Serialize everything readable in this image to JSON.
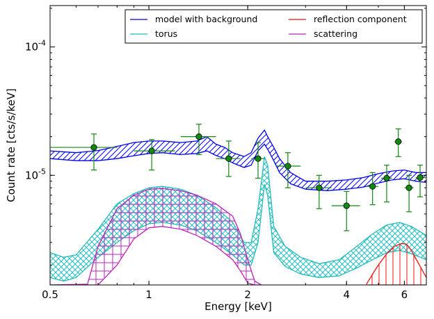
{
  "chart_data": {
    "type": "line",
    "title": "",
    "xlabel": "Energy [keV]",
    "ylabel": "Count rate [cts/s/keV]",
    "x_scale": "log",
    "y_scale": "log",
    "xlim": [
      0.5,
      7.0
    ],
    "ylim": [
      1.4e-06,
      0.00021
    ],
    "grid": false,
    "legend_position": "top-right",
    "legend_columns": 2,
    "x_ticks": [
      {
        "value": 0.5,
        "label": "0.5"
      },
      {
        "value": 1,
        "label": "1"
      },
      {
        "value": 2,
        "label": "2"
      },
      {
        "value": 4,
        "label": "4"
      },
      {
        "value": 6,
        "label": "6"
      }
    ],
    "y_ticks": [
      {
        "value": 1e-05,
        "base": "10",
        "exp": "-5"
      },
      {
        "value": 0.0001,
        "base": "10",
        "exp": "-4"
      }
    ],
    "series": [
      {
        "name": "model with background",
        "color": "#0000ee",
        "hatch": "diagonal",
        "x": [
          0.5,
          0.6,
          0.7,
          0.8,
          0.9,
          1.0,
          1.1,
          1.25,
          1.4,
          1.5,
          1.6,
          1.7,
          1.8,
          1.95,
          2.05,
          2.15,
          2.25,
          2.3,
          2.4,
          2.5,
          2.7,
          3.0,
          3.5,
          4.0,
          4.5,
          5.0,
          5.5,
          6.0,
          6.5,
          7.0
        ],
        "upper": [
          1.55e-05,
          1.5e-05,
          1.56e-05,
          1.68e-05,
          1.8e-05,
          1.85e-05,
          1.85e-05,
          1.8e-05,
          1.85e-05,
          2e-05,
          1.75e-05,
          1.65e-05,
          1.5e-05,
          1.4e-05,
          1.5e-05,
          1.95e-05,
          2.25e-05,
          2e-05,
          1.65e-05,
          1.35e-05,
          1.05e-05,
          9e-06,
          9e-06,
          9.2e-06,
          9.6e-06,
          1.03e-05,
          1.08e-05,
          1.1e-05,
          1.05e-05,
          1.05e-05
        ],
        "lower": [
          1.35e-05,
          1.3e-05,
          1.3e-05,
          1.35e-05,
          1.42e-05,
          1.48e-05,
          1.5e-05,
          1.45e-05,
          1.48e-05,
          1.55e-05,
          1.43e-05,
          1.35e-05,
          1.25e-05,
          1.15e-05,
          1.2e-05,
          1.55e-05,
          1.75e-05,
          1.6e-05,
          1.3e-05,
          1.05e-05,
          8.6e-06,
          7.8e-06,
          7.6e-06,
          7.8e-06,
          8.1e-06,
          8.7e-06,
          9.2e-06,
          9.4e-06,
          9e-06,
          8.8e-06
        ]
      },
      {
        "name": "torus",
        "color": "#22bbbb",
        "hatch": "cross-diagonal",
        "x": [
          0.5,
          0.55,
          0.6,
          0.7,
          0.8,
          0.9,
          1.0,
          1.1,
          1.25,
          1.4,
          1.6,
          1.8,
          1.95,
          2.05,
          2.15,
          2.25,
          2.3,
          2.4,
          2.6,
          2.9,
          3.3,
          3.8,
          4.3,
          4.8,
          5.3,
          5.8,
          6.3,
          7.0
        ],
        "upper": [
          2.5e-06,
          2.3e-06,
          2.4e-06,
          3.8e-06,
          6e-06,
          7.2e-06,
          8e-06,
          8.2e-06,
          7.8e-06,
          7e-06,
          5.6e-06,
          4.3e-06,
          3e-06,
          3e-06,
          5.5e-06,
          1.4e-05,
          1.2e-05,
          4e-06,
          2.8e-06,
          2.3e-06,
          2.05e-06,
          2.2e-06,
          2.8e-06,
          3.5e-06,
          4.1e-06,
          4.3e-06,
          4e-06,
          3.4e-06
        ],
        "lower": [
          1.6e-06,
          1.5e-06,
          1.6e-06,
          2.3e-06,
          3e-06,
          3.7e-06,
          4.2e-06,
          4.3e-06,
          4.1e-06,
          3.7e-06,
          3e-06,
          2.4e-06,
          2e-06,
          2e-06,
          3e-06,
          8.5e-06,
          7e-06,
          2.5e-06,
          1.95e-06,
          1.7e-06,
          1.6e-06,
          1.65e-06,
          1.9e-06,
          2.2e-06,
          2.5e-06,
          2.6e-06,
          2.45e-06,
          2.2e-06
        ]
      },
      {
        "name": "reflection component",
        "color": "#ee1111",
        "hatch": "vertical",
        "x": [
          4.6,
          4.8,
          5.0,
          5.3,
          5.6,
          5.9,
          6.1,
          6.3,
          6.6,
          7.0
        ],
        "upper": [
          1.42e-06,
          1.7e-06,
          2e-06,
          2.45e-06,
          2.8e-06,
          2.95e-06,
          2.9e-06,
          2.6e-06,
          2.1e-06,
          1.6e-06
        ],
        "lower": [
          1.4e-06,
          1.4e-06,
          1.4e-06,
          1.4e-06,
          1.4e-06,
          1.4e-06,
          1.4e-06,
          1.4e-06,
          1.4e-06,
          1.4e-06
        ]
      },
      {
        "name": "scattering",
        "color": "#bb22bb",
        "hatch": "grid",
        "x": [
          0.5,
          0.65,
          0.7,
          0.8,
          0.9,
          1.0,
          1.1,
          1.25,
          1.4,
          1.6,
          1.8,
          1.9,
          2.0,
          2.1,
          2.2
        ],
        "upper": [
          1.4e-06,
          1.42e-06,
          2.8e-06,
          5.5e-06,
          7e-06,
          7.8e-06,
          7.9e-06,
          7.6e-06,
          7e-06,
          6e-06,
          4.8e-06,
          3.5e-06,
          2.2e-06,
          1.5e-06,
          1.4e-06
        ],
        "lower": [
          1.4e-06,
          1.4e-06,
          1.4e-06,
          2e-06,
          3.2e-06,
          3.9e-06,
          4e-06,
          3.8e-06,
          3.4e-06,
          2.8e-06,
          2.2e-06,
          1.8e-06,
          1.45e-06,
          1.4e-06,
          1.4e-06
        ]
      }
    ],
    "data_points": {
      "color": "#118811",
      "marker_fill": "#118811",
      "points": [
        {
          "x": 0.68,
          "y": 1.65e-05,
          "xerr": [
            0.5,
            0.8
          ],
          "yerr": [
            1.1e-05,
            2.1e-05
          ]
        },
        {
          "x": 1.02,
          "y": 1.55e-05,
          "xerr": [
            0.9,
            1.2
          ],
          "yerr": [
            1.1e-05,
            1.9e-05
          ]
        },
        {
          "x": 1.42,
          "y": 2e-05,
          "xerr": [
            1.25,
            1.6
          ],
          "yerr": [
            1.45e-05,
            2.5e-05
          ]
        },
        {
          "x": 1.75,
          "y": 1.35e-05,
          "xerr": [
            1.6,
            1.9
          ],
          "yerr": [
            9.8e-06,
            1.85e-05
          ]
        },
        {
          "x": 2.15,
          "y": 1.35e-05,
          "xerr": [
            2.05,
            2.25
          ],
          "yerr": [
            9.5e-06,
            1.8e-05
          ]
        },
        {
          "x": 2.65,
          "y": 1.18e-05,
          "xerr": [
            2.45,
            2.9
          ],
          "yerr": [
            8e-06,
            1.5e-05
          ]
        },
        {
          "x": 3.3,
          "y": 8e-06,
          "xerr": [
            3.0,
            3.6
          ],
          "yerr": [
            5.5e-06,
            1e-05
          ]
        },
        {
          "x": 4.0,
          "y": 5.8e-06,
          "xerr": [
            3.6,
            4.4
          ],
          "yerr": [
            3.7e-06,
            7.5e-06
          ]
        },
        {
          "x": 4.8,
          "y": 8.2e-06,
          "xerr": [
            4.6,
            5.0
          ],
          "yerr": [
            5.9e-06,
            1.05e-05
          ]
        },
        {
          "x": 5.3,
          "y": 9.5e-06,
          "xerr": [
            5.1,
            5.5
          ],
          "yerr": [
            6.2e-06,
            1.2e-05
          ]
        },
        {
          "x": 5.75,
          "y": 1.83e-05,
          "xerr": [
            5.6,
            5.9
          ],
          "yerr": [
            1.4e-05,
            2.3e-05
          ]
        },
        {
          "x": 6.2,
          "y": 8e-06,
          "xerr": [
            6.0,
            6.4
          ],
          "yerr": [
            5.2e-06,
            1e-05
          ]
        },
        {
          "x": 6.7,
          "y": 9.6e-06,
          "xerr": [
            6.5,
            7.0
          ],
          "yerr": [
            6.8e-06,
            1.2e-05
          ]
        }
      ]
    }
  }
}
